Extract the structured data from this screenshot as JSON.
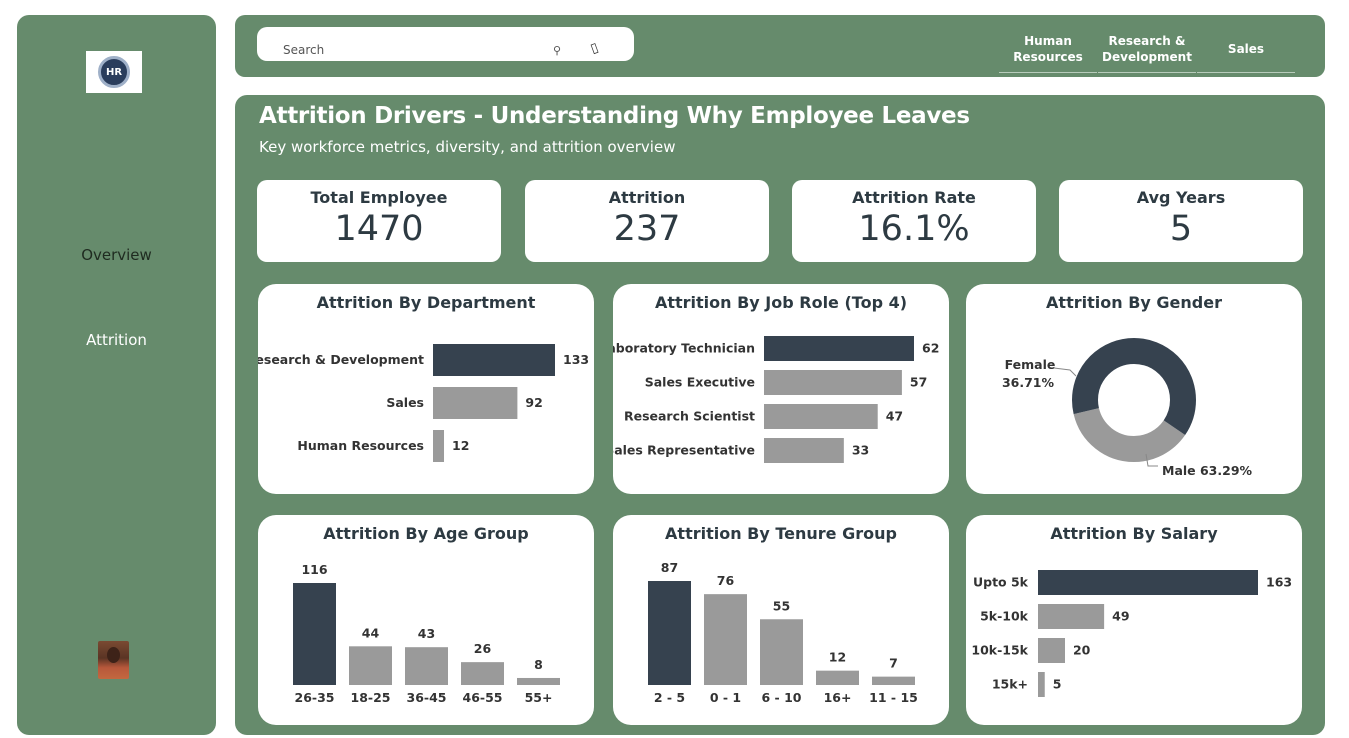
{
  "sidebar": {
    "logo_text": "HR",
    "nav": [
      {
        "label": "Overview"
      },
      {
        "label": "Attrition"
      }
    ]
  },
  "topbar": {
    "search": {
      "placeholder": "Search"
    },
    "filters": [
      {
        "label_lines": [
          "Human",
          "Resources"
        ]
      },
      {
        "label_lines": [
          "Research &",
          "Development"
        ]
      },
      {
        "label_lines": [
          "Sales"
        ]
      }
    ]
  },
  "main": {
    "title": "Attrition Drivers - Understanding Why Employee Leaves",
    "subtitle": "Key workforce metrics, diversity, and attrition overview",
    "kpis": [
      {
        "label": "Total Employee",
        "value": "1470"
      },
      {
        "label": "Attrition",
        "value": "237"
      },
      {
        "label": "Attrition Rate",
        "value": "16.1%"
      },
      {
        "label": "Avg Years",
        "value": "5"
      }
    ]
  },
  "colors": {
    "green": "#668b6c",
    "dark": "#36424f",
    "gray": "#9a9a9a"
  },
  "chart_data": [
    {
      "type": "bar",
      "orientation": "horizontal",
      "title": "Attrition By Department",
      "categories": [
        "Research & Development",
        "Sales",
        "Human Resources"
      ],
      "values": [
        133,
        92,
        12
      ]
    },
    {
      "type": "bar",
      "orientation": "horizontal",
      "title": "Attrition By Job Role (Top 4)",
      "categories": [
        "Laboratory Technician",
        "Sales Executive",
        "Research Scientist",
        "Sales Representative"
      ],
      "values": [
        62,
        57,
        47,
        33
      ]
    },
    {
      "type": "pie",
      "donut": true,
      "title": "Attrition By Gender",
      "categories": [
        "Female",
        "Male"
      ],
      "values": [
        36.71,
        63.29
      ],
      "labels": [
        "Female\n36.71%",
        "Male 63.29%"
      ]
    },
    {
      "type": "bar",
      "orientation": "vertical",
      "title": "Attrition By Age Group",
      "categories": [
        "26-35",
        "18-25",
        "36-45",
        "46-55",
        "55+"
      ],
      "values": [
        116,
        44,
        43,
        26,
        8
      ]
    },
    {
      "type": "bar",
      "orientation": "vertical",
      "title": "Attrition By Tenure Group",
      "categories": [
        "2 - 5",
        "0 - 1",
        "6 - 10",
        "16+",
        "11 - 15"
      ],
      "values": [
        87,
        76,
        55,
        12,
        7
      ]
    },
    {
      "type": "bar",
      "orientation": "horizontal",
      "title": "Attrition By Salary",
      "categories": [
        "Upto 5k",
        "5k-10k",
        "10k-15k",
        "15k+"
      ],
      "values": [
        163,
        49,
        20,
        5
      ]
    }
  ]
}
